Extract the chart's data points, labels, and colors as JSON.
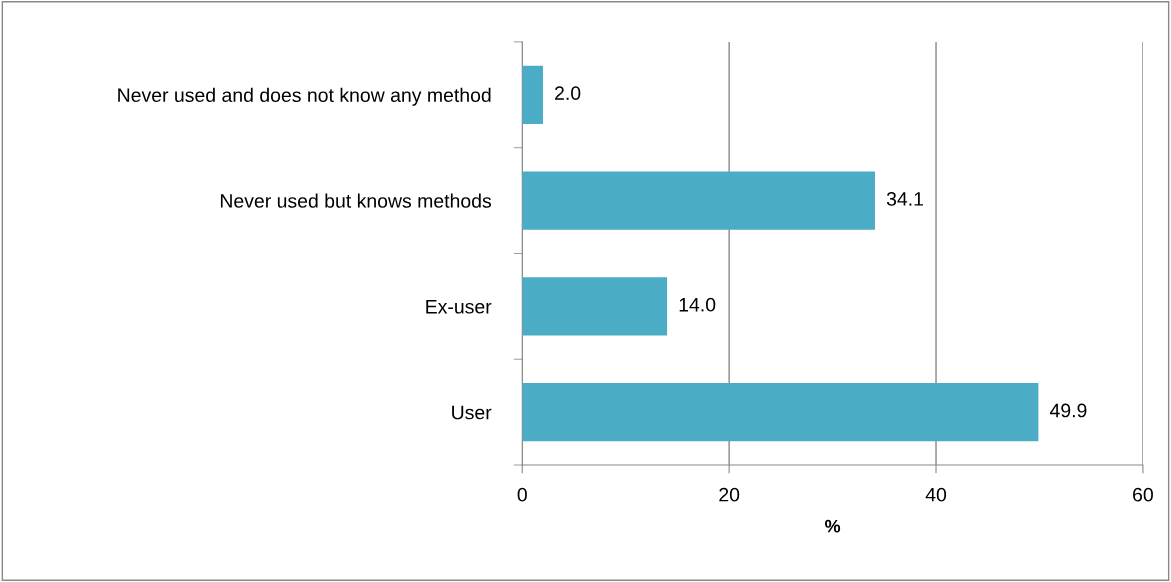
{
  "chart_data": {
    "type": "bar",
    "orientation": "horizontal",
    "xlabel": "%",
    "categories": [
      "Never used and does not know any method",
      "Never used but knows methods",
      "Ex-user",
      "User"
    ],
    "values": [
      2.0,
      34.1,
      14.0,
      49.9
    ],
    "value_labels": [
      "2.0",
      "34.1",
      "14.0",
      "49.9"
    ],
    "color": "#4bacc6",
    "xlim": [
      0,
      60
    ],
    "xticks": [
      0,
      20,
      40,
      60
    ],
    "grid": "x"
  }
}
